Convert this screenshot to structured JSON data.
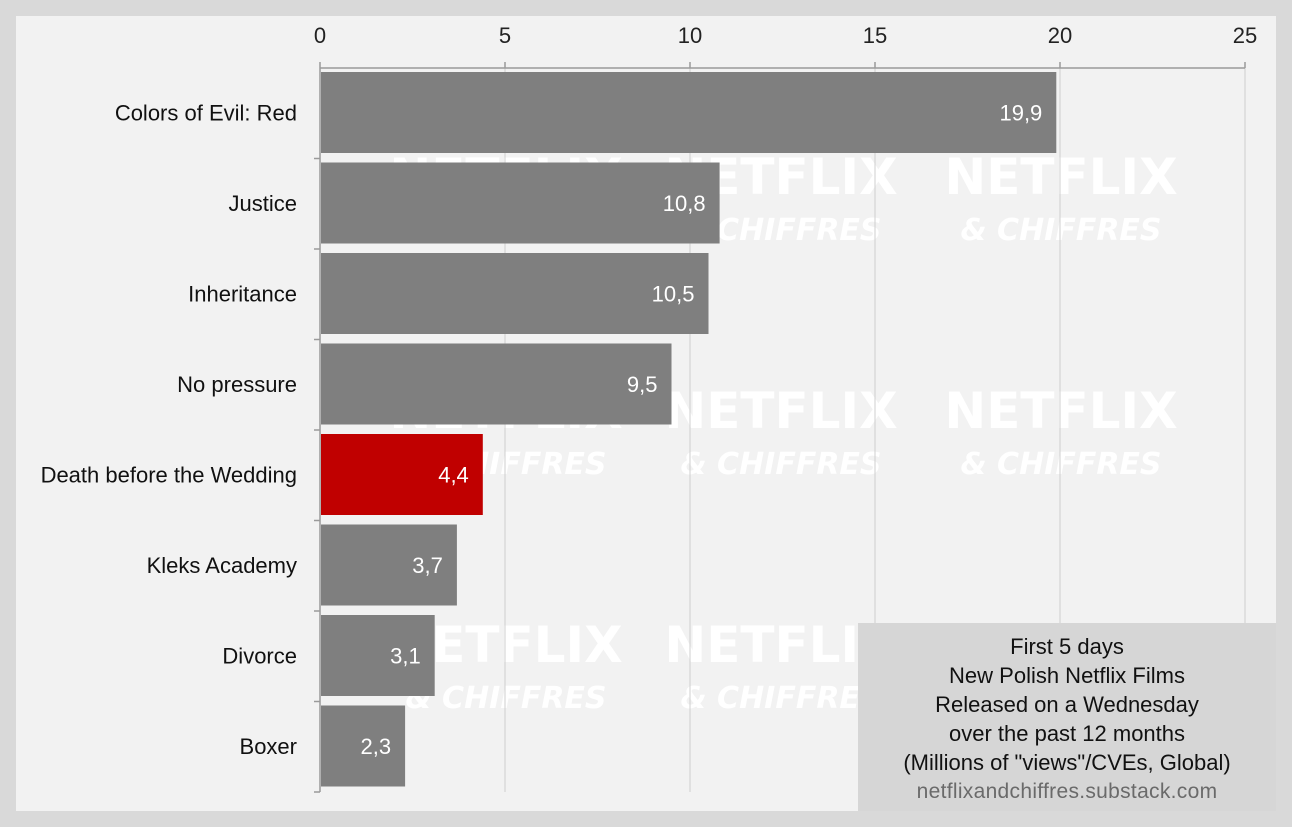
{
  "watermark": {
    "line1": "NETFLIX",
    "line2": "& CHIFFRES"
  },
  "chart_data": {
    "type": "bar",
    "orientation": "horizontal",
    "categories": [
      "Colors of Evil: Red",
      "Justice",
      "Inheritance",
      "No pressure",
      "Death before the Wedding",
      "Kleks Academy",
      "Divorce",
      "Boxer"
    ],
    "values": [
      19.9,
      10.8,
      10.5,
      9.5,
      4.4,
      3.7,
      3.1,
      2.3
    ],
    "value_labels": [
      "19,9",
      "10,8",
      "10,5",
      "9,5",
      "4,4",
      "3,7",
      "3,1",
      "2,3"
    ],
    "highlight_category": "Death before the Wedding",
    "xlim": [
      0,
      25
    ],
    "xticks": [
      0,
      5,
      10,
      15,
      20,
      25
    ],
    "x_axis_position": "top",
    "grid": true,
    "colors": {
      "bar": "#7f7f7f",
      "highlight": "#c00000",
      "grid": "#cfcfcf"
    }
  },
  "note": {
    "lines": [
      "First 5 days",
      "New Polish Netflix Films",
      "Released on a Wednesday",
      "over the past 12 months",
      "(Millions of \"views\"/CVEs, Global)"
    ],
    "source": "netflixandchiffres.substack.com"
  }
}
